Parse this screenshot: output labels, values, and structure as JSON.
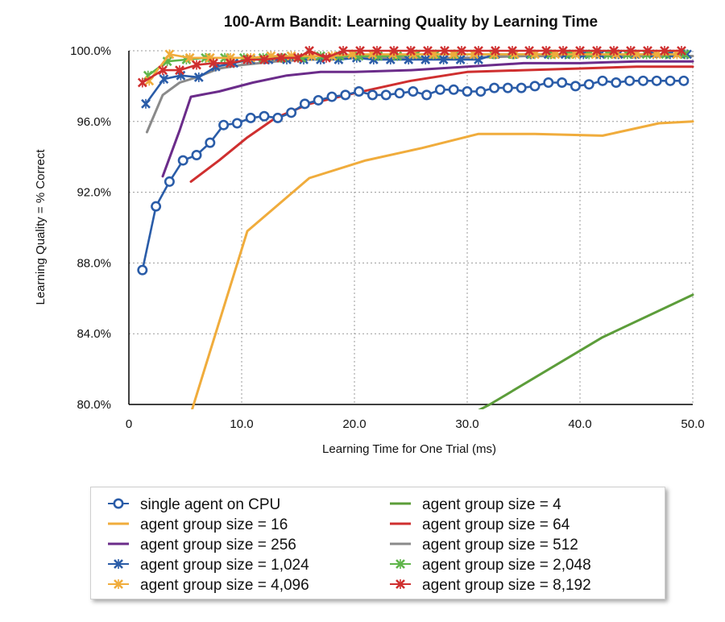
{
  "chart_data": {
    "type": "line",
    "title": "100-Arm Bandit: Learning Quality by Learning Time",
    "xlabel": "Learning Time for One Trial (ms)",
    "ylabel": "Learning Quality = % Correct",
    "xlim": [
      0,
      50
    ],
    "ylim": [
      80,
      100
    ],
    "x_ticks": [
      "0",
      "10.0",
      "20.0",
      "30.0",
      "40.0",
      "50.0"
    ],
    "y_ticks": [
      "80.0%",
      "84.0%",
      "88.0%",
      "92.0%",
      "96.0%",
      "100.0%"
    ],
    "grid": true,
    "legend_position": "bottom",
    "series": [
      {
        "name": "single agent on CPU",
        "color": "#2a5ca8",
        "marker": "circle",
        "x": [
          1.2,
          2.4,
          3.6,
          4.8,
          6.0,
          7.2,
          8.4,
          9.6,
          10.8,
          12.0,
          13.2,
          14.4,
          15.6,
          16.8,
          18.0,
          19.2,
          20.4,
          21.6,
          22.8,
          24.0,
          25.2,
          26.4,
          27.6,
          28.8,
          30.0,
          31.2,
          32.4,
          33.6,
          34.8,
          36.0,
          37.2,
          38.4,
          39.6,
          40.8,
          42.0,
          43.2,
          44.4,
          45.6,
          46.8,
          48.0,
          49.2
        ],
        "y": [
          87.6,
          91.2,
          92.6,
          93.8,
          94.1,
          94.8,
          95.8,
          95.9,
          96.2,
          96.3,
          96.2,
          96.5,
          97.0,
          97.2,
          97.4,
          97.5,
          97.7,
          97.5,
          97.5,
          97.6,
          97.7,
          97.5,
          97.8,
          97.8,
          97.7,
          97.7,
          97.9,
          97.9,
          97.9,
          98.0,
          98.2,
          98.2,
          98.0,
          98.1,
          98.3,
          98.2,
          98.3,
          98.3,
          98.3,
          98.3,
          98.3
        ]
      },
      {
        "name": "agent group size = 4",
        "color": "#5c9d3a",
        "marker": "none",
        "x": [
          30.5,
          32.0,
          42.0,
          50.0
        ],
        "y": [
          79.5,
          80.0,
          83.8,
          86.2
        ]
      },
      {
        "name": "agent group size = 16",
        "color": "#f0ac3c",
        "marker": "none",
        "x": [
          5.5,
          10.5,
          16.0,
          21.0,
          26.0,
          31.0,
          36.0,
          42.0,
          47.0,
          50.0
        ],
        "y": [
          79.5,
          89.8,
          92.8,
          93.8,
          94.5,
          95.3,
          95.3,
          95.2,
          95.9,
          96.0
        ]
      },
      {
        "name": "agent group size = 64",
        "color": "#cf2f2f",
        "marker": "none",
        "x": [
          5.5,
          8.0,
          10.5,
          13.0,
          16.0,
          20.0,
          25.0,
          30.0,
          35.0,
          40.0,
          45.0,
          50.0
        ],
        "y": [
          92.6,
          93.8,
          95.1,
          96.2,
          97.0,
          97.6,
          98.3,
          98.8,
          98.9,
          99.0,
          99.1,
          99.1
        ]
      },
      {
        "name": "agent group size = 256",
        "color": "#6b2c8a",
        "marker": "none",
        "x": [
          3.0,
          4.5,
          5.5,
          8.0,
          11.0,
          14.0,
          17.0,
          20.0,
          25.0,
          30.0,
          35.0,
          40.0,
          45.0,
          50.0
        ],
        "y": [
          92.9,
          95.5,
          97.4,
          97.7,
          98.2,
          98.6,
          98.8,
          98.8,
          98.9,
          99.1,
          99.3,
          99.3,
          99.4,
          99.4
        ]
      },
      {
        "name": "agent group size = 512",
        "color": "#8a8a8a",
        "marker": "none",
        "x": [
          1.6,
          3.0,
          4.5,
          6.0,
          8.0,
          10.0,
          13.0,
          16.0,
          20.0,
          25.0,
          30.0,
          35.0,
          40.0,
          45.0,
          50.0
        ],
        "y": [
          95.4,
          97.5,
          98.2,
          98.5,
          99.0,
          99.2,
          99.4,
          99.5,
          99.6,
          99.6,
          99.6,
          99.7,
          99.7,
          99.7,
          99.7
        ]
      },
      {
        "name": "agent group size = 1,024",
        "color": "#2a5ca8",
        "marker": "x",
        "x": [
          1.5,
          3.1,
          4.6,
          6.2,
          7.7,
          9.3,
          10.8,
          12.4,
          14.0,
          15.5,
          17.0,
          18.6,
          20.2,
          21.7,
          23.2,
          24.8,
          26.3,
          27.9,
          29.4,
          31.0,
          32.5,
          34.1,
          35.6,
          37.2,
          38.7,
          40.3,
          41.8,
          43.4,
          44.9,
          46.5,
          48.0,
          49.5
        ],
        "y": [
          97.0,
          98.4,
          98.6,
          98.5,
          99.1,
          99.3,
          99.5,
          99.5,
          99.5,
          99.5,
          99.5,
          99.5,
          99.6,
          99.5,
          99.5,
          99.5,
          99.5,
          99.5,
          99.5,
          99.5,
          99.8,
          99.8,
          99.8,
          99.8,
          99.8,
          99.8,
          99.8,
          99.8,
          99.8,
          99.8,
          99.8,
          99.8
        ]
      },
      {
        "name": "agent group size = 2,048",
        "color": "#5fb54a",
        "marker": "x",
        "x": [
          1.7,
          3.4,
          5.1,
          6.8,
          8.5,
          10.2,
          11.9,
          13.6,
          15.3,
          17.0,
          18.7,
          20.4,
          22.1,
          23.8,
          25.5,
          27.2,
          28.9,
          30.6,
          32.3,
          34.0,
          35.7,
          37.4,
          39.1,
          40.8,
          42.5,
          44.2,
          45.9,
          47.6,
          49.3
        ],
        "y": [
          98.6,
          99.4,
          99.5,
          99.6,
          99.6,
          99.6,
          99.6,
          99.6,
          99.6,
          99.7,
          99.7,
          99.7,
          99.7,
          99.7,
          99.8,
          99.8,
          99.8,
          99.8,
          99.8,
          99.8,
          99.8,
          99.8,
          99.8,
          99.8,
          99.8,
          99.8,
          99.8,
          99.8,
          99.8
        ]
      },
      {
        "name": "agent group size = 4,096",
        "color": "#f0ac3c",
        "marker": "x",
        "x": [
          1.8,
          3.6,
          5.4,
          7.2,
          9.0,
          10.8,
          12.6,
          14.4,
          16.2,
          18.0,
          19.8,
          21.6,
          23.4,
          25.2,
          27.0,
          28.8,
          30.6,
          32.4,
          34.2,
          36.0,
          37.8,
          39.6,
          41.4,
          43.2,
          45.0,
          46.8,
          48.6
        ],
        "y": [
          98.3,
          99.8,
          99.6,
          99.6,
          99.6,
          99.6,
          99.7,
          99.7,
          99.7,
          99.7,
          99.8,
          99.8,
          99.8,
          99.8,
          99.8,
          99.8,
          99.8,
          99.8,
          99.8,
          99.8,
          99.8,
          99.8,
          99.8,
          99.8,
          99.8,
          99.8,
          99.8
        ]
      },
      {
        "name": "agent group size = 8,192",
        "color": "#cf2f2f",
        "marker": "x",
        "x": [
          1.2,
          3.0,
          4.5,
          6.0,
          7.5,
          9.0,
          10.5,
          12.0,
          13.5,
          15.0,
          16.0,
          17.5,
          19.0,
          20.5,
          22.0,
          23.5,
          25.0,
          26.5,
          28.0,
          29.5,
          31.0,
          32.5,
          34.0,
          35.5,
          37.0,
          38.5,
          40.0,
          41.5,
          43.0,
          44.5,
          46.0,
          47.5,
          49.0
        ],
        "y": [
          98.2,
          98.9,
          98.9,
          99.2,
          99.3,
          99.3,
          99.5,
          99.5,
          99.6,
          99.6,
          100.0,
          99.6,
          100.0,
          100.0,
          100.0,
          100.0,
          100.0,
          100.0,
          100.0,
          100.0,
          100.0,
          100.0,
          100.0,
          100.0,
          100.0,
          100.0,
          100.0,
          100.0,
          100.0,
          100.0,
          100.0,
          100.0,
          100.0
        ]
      }
    ]
  },
  "legend": {
    "order": [
      "single agent on CPU",
      "agent group size = 4",
      "agent group size = 16",
      "agent group size = 64",
      "agent group size = 256",
      "agent group size = 512",
      "agent group size = 1,024",
      "agent group size = 2,048",
      "agent group size = 4,096",
      "agent group size = 8,192"
    ]
  }
}
